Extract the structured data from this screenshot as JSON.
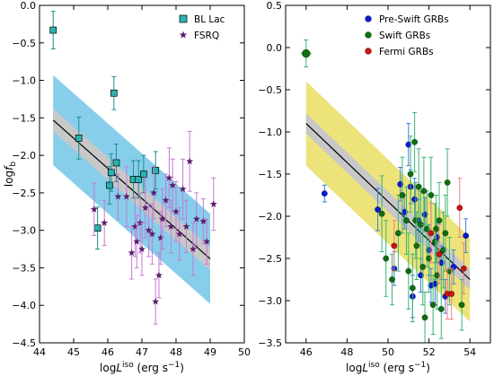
{
  "chart_data": [
    {
      "type": "scatter",
      "xlabel": "logL^iso (erg s^-1)",
      "xlabel_parts": {
        "main": "log",
        "var": "L",
        "sup": "iso",
        "unit_open": " (erg s",
        "unit_sup": "−1",
        "unit_close": ")"
      },
      "ylabel": "log f_b",
      "ylabel_parts": {
        "main": "log",
        "var": "f",
        "sub": "b"
      },
      "xlim": [
        44,
        50
      ],
      "ylim": [
        -4.5,
        0.0
      ],
      "xticks": [
        "44",
        "45",
        "46",
        "47",
        "48",
        "49",
        "50"
      ],
      "yticks": [
        "0.0",
        "−0.5",
        "−1.0",
        "−1.5",
        "−2.0",
        "−2.5",
        "−3.0",
        "−3.5",
        "−4.0",
        "−4.5"
      ],
      "legend": {
        "placement": "top-right",
        "entries": [
          "BL Lac",
          "FSRQ"
        ]
      },
      "series": [
        {
          "name": "BL Lac",
          "marker": "square",
          "color": "#2ab3b3",
          "points": [
            {
              "x": 44.4,
              "y": -0.33,
              "err": 0.25
            },
            {
              "x": 45.15,
              "y": -1.77,
              "err": 0.28
            },
            {
              "x": 45.7,
              "y": -2.97,
              "err": 0.28
            },
            {
              "x": 46.05,
              "y": -2.4,
              "err": 0.25
            },
            {
              "x": 46.1,
              "y": -2.23,
              "err": 0.25
            },
            {
              "x": 46.18,
              "y": -1.17,
              "err": 0.22
            },
            {
              "x": 46.25,
              "y": -2.1,
              "err": 0.25
            },
            {
              "x": 46.75,
              "y": -2.32,
              "err": 0.25
            },
            {
              "x": 46.9,
              "y": -2.32,
              "err": 0.25
            },
            {
              "x": 47.05,
              "y": -2.25,
              "err": 0.25
            },
            {
              "x": 47.4,
              "y": -2.2,
              "err": 0.25
            }
          ]
        },
        {
          "name": "FSRQ",
          "marker": "star",
          "color": "#5b1f6e",
          "points": [
            {
              "x": 45.6,
              "y": -2.72,
              "err": 0.35
            },
            {
              "x": 45.9,
              "y": -2.9,
              "err": 0.3
            },
            {
              "x": 46.3,
              "y": -2.55,
              "err": 0.3
            },
            {
              "x": 46.55,
              "y": -2.55,
              "err": 0.4
            },
            {
              "x": 46.7,
              "y": -3.3,
              "err": 0.35
            },
            {
              "x": 46.8,
              "y": -2.95,
              "err": 0.4
            },
            {
              "x": 46.85,
              "y": -3.15,
              "err": 0.35
            },
            {
              "x": 46.95,
              "y": -2.9,
              "err": 0.4
            },
            {
              "x": 47.0,
              "y": -3.25,
              "err": 0.35
            },
            {
              "x": 47.1,
              "y": -2.7,
              "err": 0.4
            },
            {
              "x": 47.2,
              "y": -3.0,
              "err": 0.35
            },
            {
              "x": 47.3,
              "y": -3.05,
              "err": 0.4
            },
            {
              "x": 47.35,
              "y": -2.5,
              "err": 0.35
            },
            {
              "x": 47.4,
              "y": -3.95,
              "err": 0.3
            },
            {
              "x": 47.5,
              "y": -3.6,
              "err": 0.3
            },
            {
              "x": 47.55,
              "y": -3.1,
              "err": 0.35
            },
            {
              "x": 47.6,
              "y": -2.85,
              "err": 0.4
            },
            {
              "x": 47.7,
              "y": -2.6,
              "err": 0.35
            },
            {
              "x": 47.8,
              "y": -2.3,
              "err": 0.4
            },
            {
              "x": 47.85,
              "y": -2.95,
              "err": 0.35
            },
            {
              "x": 47.9,
              "y": -2.4,
              "err": 0.35
            },
            {
              "x": 48.0,
              "y": -2.75,
              "err": 0.4
            },
            {
              "x": 48.1,
              "y": -3.05,
              "err": 0.35
            },
            {
              "x": 48.2,
              "y": -2.45,
              "err": 0.4
            },
            {
              "x": 48.3,
              "y": -2.95,
              "err": 0.35
            },
            {
              "x": 48.4,
              "y": -2.08,
              "err": 0.4
            },
            {
              "x": 48.5,
              "y": -3.25,
              "err": 0.35
            },
            {
              "x": 48.6,
              "y": -2.85,
              "err": 0.35
            },
            {
              "x": 48.8,
              "y": -2.88,
              "err": 0.3
            },
            {
              "x": 48.9,
              "y": -3.15,
              "err": 0.3
            },
            {
              "x": 49.1,
              "y": -2.65,
              "err": 0.35
            }
          ]
        }
      ],
      "fit": {
        "x": [
          44.4,
          49.0
        ],
        "y": [
          -1.53,
          -3.38
        ],
        "inner_band": 0.15,
        "outer_band": 0.6,
        "line_color": "#000000",
        "inner_color": "#c8c8c8",
        "outer_color": "#87ceeb"
      }
    },
    {
      "type": "scatter",
      "xlabel": "logL^iso (erg s^-1)",
      "xlabel_parts": {
        "main": "log",
        "var": "L",
        "sup": "iso",
        "unit_open": " (erg s",
        "unit_sup": "−1",
        "unit_close": ")"
      },
      "xlim": [
        45,
        55
      ],
      "ylim": [
        -3.5,
        0.5
      ],
      "xticks": [
        "46",
        "48",
        "50",
        "52",
        "54"
      ],
      "xtick_values": [
        46,
        48,
        50,
        52,
        54
      ],
      "yticks": [
        "0.5",
        "0.0",
        "−0.5",
        "−1.0",
        "−1.5",
        "−2.0",
        "−2.5",
        "−3.0",
        "−3.5"
      ],
      "legend": {
        "placement": "top-right",
        "entries": [
          "Pre-Swift GRBs",
          "Swift GRBs",
          "Fermi GRBs"
        ]
      },
      "series": [
        {
          "name": "Pre-Swift GRBs",
          "marker": "circle",
          "color": "#0b18d6",
          "errcolor": "#3a7ed8",
          "points": [
            {
              "x": 46.9,
              "y": -1.73,
              "err": 0.1
            },
            {
              "x": 49.5,
              "y": -1.92,
              "err": 0.25
            },
            {
              "x": 50.6,
              "y": -1.62,
              "err": 0.2
            },
            {
              "x": 50.8,
              "y": -1.95,
              "err": 0.2
            },
            {
              "x": 51.0,
              "y": -1.15,
              "err": 0.25
            },
            {
              "x": 51.1,
              "y": -1.65,
              "err": 0.2
            },
            {
              "x": 51.3,
              "y": -1.8,
              "err": 0.25
            },
            {
              "x": 51.5,
              "y": -2.05,
              "err": 0.25
            },
            {
              "x": 51.6,
              "y": -2.7,
              "err": 0.2
            },
            {
              "x": 51.8,
              "y": -1.98,
              "err": 0.2
            },
            {
              "x": 52.0,
              "y": -2.4,
              "err": 0.3
            },
            {
              "x": 52.1,
              "y": -2.82,
              "err": 0.2
            },
            {
              "x": 52.3,
              "y": -2.8,
              "err": 0.25
            },
            {
              "x": 52.4,
              "y": -2.25,
              "err": 0.2
            },
            {
              "x": 52.6,
              "y": -2.55,
              "err": 0.2
            },
            {
              "x": 52.8,
              "y": -2.95,
              "err": 0.2
            },
            {
              "x": 53.2,
              "y": -2.6,
              "err": 0.2
            },
            {
              "x": 53.8,
              "y": -2.23,
              "err": 0.2
            },
            {
              "x": 50.3,
              "y": -2.62,
              "err": 0.2
            },
            {
              "x": 51.2,
              "y": -2.95,
              "err": 0.25
            }
          ]
        },
        {
          "name": "Swift GRBs",
          "marker": "circle",
          "color": "#0e6e0e",
          "errcolor": "#3cb371",
          "points": [
            {
              "x": 46.0,
              "y": -0.07,
              "err": 0.16,
              "big": true
            },
            {
              "x": 49.7,
              "y": -1.97,
              "err": 0.45
            },
            {
              "x": 49.9,
              "y": -2.5,
              "err": 0.45
            },
            {
              "x": 50.5,
              "y": -2.2,
              "err": 0.45
            },
            {
              "x": 50.7,
              "y": -1.75,
              "err": 0.45
            },
            {
              "x": 50.9,
              "y": -2.05,
              "err": 0.4
            },
            {
              "x": 51.0,
              "y": -2.65,
              "err": 0.45
            },
            {
              "x": 51.1,
              "y": -1.5,
              "err": 0.45
            },
            {
              "x": 51.2,
              "y": -2.85,
              "err": 0.4
            },
            {
              "x": 51.3,
              "y": -1.12,
              "err": 0.35
            },
            {
              "x": 51.35,
              "y": -2.05,
              "err": 0.45
            },
            {
              "x": 51.4,
              "y": -2.35,
              "err": 0.4
            },
            {
              "x": 51.5,
              "y": -1.65,
              "err": 0.45
            },
            {
              "x": 51.6,
              "y": -2.1,
              "err": 0.4
            },
            {
              "x": 51.7,
              "y": -2.6,
              "err": 0.45
            },
            {
              "x": 51.8,
              "y": -3.2,
              "err": 0.3
            },
            {
              "x": 51.9,
              "y": -2.15,
              "err": 0.45
            },
            {
              "x": 52.0,
              "y": -2.5,
              "err": 0.4
            },
            {
              "x": 52.1,
              "y": -1.75,
              "err": 0.45
            },
            {
              "x": 52.2,
              "y": -3.05,
              "err": 0.35
            },
            {
              "x": 52.3,
              "y": -2.3,
              "err": 0.45
            },
            {
              "x": 52.4,
              "y": -2.7,
              "err": 0.4
            },
            {
              "x": 52.5,
              "y": -2.05,
              "err": 0.45
            },
            {
              "x": 52.6,
              "y": -3.1,
              "err": 0.35
            },
            {
              "x": 52.7,
              "y": -2.4,
              "err": 0.45
            },
            {
              "x": 52.8,
              "y": -2.2,
              "err": 0.45
            },
            {
              "x": 53.0,
              "y": -2.65,
              "err": 0.4
            },
            {
              "x": 53.6,
              "y": -3.05,
              "err": 0.3
            },
            {
              "x": 52.9,
              "y": -1.6,
              "err": 0.4
            },
            {
              "x": 50.2,
              "y": -2.75,
              "err": 0.3
            },
            {
              "x": 51.75,
              "y": -1.7,
              "err": 0.4
            },
            {
              "x": 52.35,
              "y": -2.15,
              "err": 0.4
            }
          ]
        },
        {
          "name": "Fermi GRBs",
          "marker": "circle",
          "color": "#d01010",
          "errcolor": "#f08080",
          "points": [
            {
              "x": 50.3,
              "y": -2.35,
              "err": 0.3
            },
            {
              "x": 52.1,
              "y": -2.2,
              "err": 0.35
            },
            {
              "x": 52.5,
              "y": -2.45,
              "err": 0.35
            },
            {
              "x": 52.9,
              "y": -2.92,
              "err": 0.3
            },
            {
              "x": 53.1,
              "y": -2.92,
              "err": 0.3
            },
            {
              "x": 53.5,
              "y": -1.9,
              "err": 0.35
            },
            {
              "x": 53.7,
              "y": -2.62,
              "err": 0.3
            }
          ]
        }
      ],
      "fit": {
        "x": [
          46.0,
          54.0
        ],
        "y": [
          -0.9,
          -2.75
        ],
        "inner_band": 0.12,
        "outer_band": 0.5,
        "line_color": "#000000",
        "inner_color": "#c8c8c8",
        "outer_color": "#ece37a"
      }
    }
  ]
}
